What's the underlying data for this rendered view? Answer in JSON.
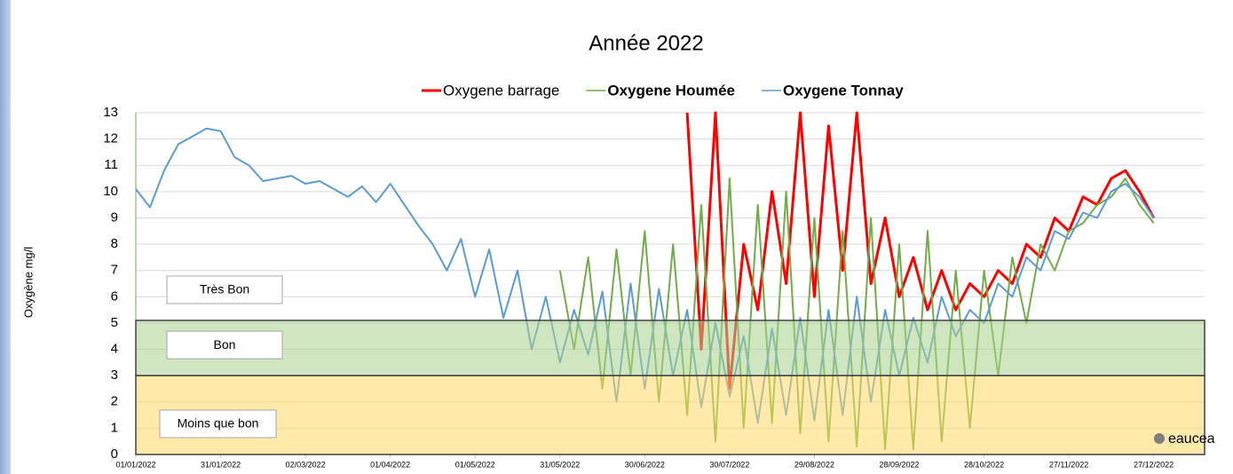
{
  "chart_data": {
    "type": "line",
    "title": "Année 2022",
    "y_label": "Oxygène mg/l",
    "watermark": "eaucea",
    "x": [
      "2022-01-01",
      "2022-01-06",
      "2022-01-11",
      "2022-01-16",
      "2022-01-21",
      "2022-01-26",
      "2022-01-31",
      "2022-02-05",
      "2022-02-10",
      "2022-02-15",
      "2022-02-20",
      "2022-02-25",
      "2022-03-02",
      "2022-03-07",
      "2022-03-12",
      "2022-03-17",
      "2022-03-22",
      "2022-03-27",
      "2022-04-01",
      "2022-04-06",
      "2022-04-11",
      "2022-04-16",
      "2022-04-21",
      "2022-04-26",
      "2022-05-01",
      "2022-05-06",
      "2022-05-11",
      "2022-05-16",
      "2022-05-21",
      "2022-05-26",
      "2022-05-31",
      "2022-06-05",
      "2022-06-10",
      "2022-06-15",
      "2022-06-20",
      "2022-06-25",
      "2022-06-30",
      "2022-07-05",
      "2022-07-10",
      "2022-07-15",
      "2022-07-20",
      "2022-07-25",
      "2022-07-30",
      "2022-08-04",
      "2022-08-09",
      "2022-08-14",
      "2022-08-19",
      "2022-08-24",
      "2022-08-29",
      "2022-09-03",
      "2022-09-08",
      "2022-09-13",
      "2022-09-18",
      "2022-09-23",
      "2022-09-28",
      "2022-10-03",
      "2022-10-08",
      "2022-10-13",
      "2022-10-18",
      "2022-10-23",
      "2022-10-28",
      "2022-11-02",
      "2022-11-07",
      "2022-11-12",
      "2022-11-17",
      "2022-11-22",
      "2022-11-27",
      "2022-12-02",
      "2022-12-07",
      "2022-12-12",
      "2022-12-17",
      "2022-12-22",
      "2022-12-27"
    ],
    "series": [
      {
        "name": "Oxygene barrage",
        "color": "#ff0000",
        "values": [
          null,
          null,
          null,
          null,
          null,
          null,
          null,
          null,
          null,
          null,
          null,
          null,
          null,
          null,
          null,
          null,
          null,
          null,
          null,
          null,
          null,
          null,
          null,
          null,
          null,
          null,
          null,
          null,
          null,
          null,
          null,
          null,
          null,
          null,
          null,
          null,
          null,
          null,
          null,
          13,
          4.0,
          13,
          2.5,
          8.0,
          5.5,
          10.0,
          6.5,
          13,
          6.0,
          12.5,
          7.0,
          13,
          6.5,
          9.0,
          6.0,
          7.5,
          5.5,
          7.0,
          5.5,
          6.5,
          6.0,
          7.0,
          6.5,
          8.0,
          7.5,
          9.0,
          8.5,
          9.8,
          9.5,
          10.5,
          10.8,
          10.0,
          9.0
        ]
      },
      {
        "name": "Oxygene Houmée",
        "color": "#70ad47",
        "values": [
          null,
          null,
          null,
          null,
          null,
          null,
          null,
          null,
          null,
          null,
          null,
          null,
          null,
          null,
          null,
          null,
          null,
          null,
          null,
          null,
          null,
          null,
          null,
          null,
          null,
          null,
          null,
          null,
          null,
          null,
          7.0,
          4.0,
          7.5,
          2.5,
          7.8,
          3.0,
          8.5,
          2.0,
          8.0,
          1.5,
          9.5,
          0.5,
          10.5,
          1.0,
          9.5,
          1.2,
          10.0,
          0.8,
          9.0,
          0.5,
          8.5,
          0.3,
          9.0,
          0.2,
          8.0,
          0.2,
          8.5,
          0.5,
          7.0,
          1.0,
          7.0,
          3.0,
          7.5,
          5.0,
          8.0,
          7.0,
          8.5,
          8.8,
          9.5,
          9.8,
          10.5,
          9.5,
          8.8
        ]
      },
      {
        "name": "Oxygene Tonnay",
        "color": "#5b9bd5",
        "values": [
          10.1,
          9.4,
          10.8,
          11.8,
          12.1,
          12.4,
          12.3,
          11.3,
          11.0,
          10.4,
          10.5,
          10.6,
          10.3,
          10.4,
          10.1,
          9.8,
          10.2,
          9.6,
          10.3,
          9.5,
          8.7,
          8.0,
          7.0,
          8.2,
          6.0,
          7.8,
          5.2,
          7.0,
          4.0,
          6.0,
          3.5,
          5.5,
          3.8,
          6.2,
          2.0,
          6.5,
          2.5,
          6.3,
          3.0,
          5.5,
          1.8,
          5.0,
          2.2,
          4.5,
          1.2,
          4.8,
          1.5,
          5.2,
          1.3,
          5.5,
          1.5,
          6.0,
          2.0,
          5.5,
          3.0,
          5.2,
          3.5,
          6.0,
          4.5,
          5.5,
          5.0,
          6.5,
          6.0,
          7.5,
          7.0,
          8.5,
          8.2,
          9.2,
          9.0,
          10.0,
          10.3,
          9.8,
          9.0
        ]
      }
    ],
    "zones": [
      {
        "label": "Très Bon",
        "from": 5.1,
        "to": 13,
        "color": "none"
      },
      {
        "label": "Bon",
        "from": 3,
        "to": 5.1,
        "color": "#a9d18e"
      },
      {
        "label": "Moins que bon",
        "from": 0,
        "to": 3,
        "color": "#ffd966"
      }
    ],
    "xlim": [
      "2022-01-01",
      "2023-01-14"
    ],
    "xticks": [
      {
        "value": "2022-01-01",
        "label": "01/01/2022"
      },
      {
        "value": "2022-01-31",
        "label": "31/01/2022"
      },
      {
        "value": "2022-03-02",
        "label": "02/03/2022"
      },
      {
        "value": "2022-04-01",
        "label": "01/04/2022"
      },
      {
        "value": "2022-05-01",
        "label": "01/05/2022"
      },
      {
        "value": "2022-05-31",
        "label": "31/05/2022"
      },
      {
        "value": "2022-06-30",
        "label": "30/06/2022"
      },
      {
        "value": "2022-07-30",
        "label": "30/07/2022"
      },
      {
        "value": "2022-08-29",
        "label": "29/08/2022"
      },
      {
        "value": "2022-09-28",
        "label": "28/09/2022"
      },
      {
        "value": "2022-10-28",
        "label": "28/10/2022"
      },
      {
        "value": "2022-11-27",
        "label": "27/11/2022"
      },
      {
        "value": "2022-12-27",
        "label": "27/12/2022"
      }
    ],
    "ylim": [
      0,
      13
    ],
    "yticks": [
      0,
      1,
      2,
      3,
      4,
      5,
      6,
      7,
      8,
      9,
      10,
      11,
      12,
      13
    ],
    "grid": true
  }
}
